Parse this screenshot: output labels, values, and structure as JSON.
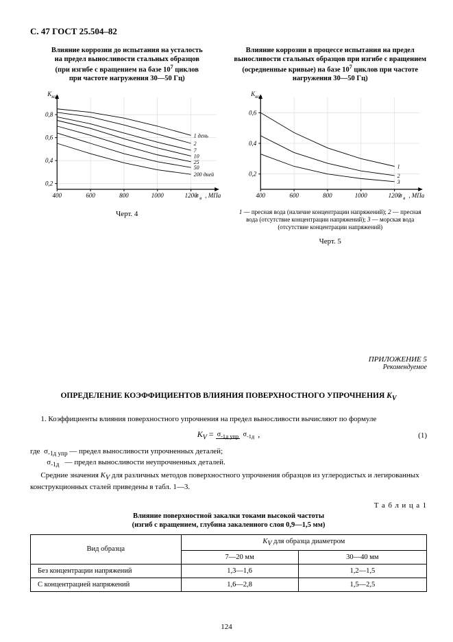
{
  "header": "С. 47  ГОСТ 25.504–82",
  "chart4": {
    "title_lines": [
      "Влияние коррозии до испытания на усталость",
      "на предел выносливости стальных образцов",
      "(при изгибе с вращением на базе 10^7 циклов",
      "при частоте нагружения 30—50 Гц)"
    ],
    "y_label": "K_кор",
    "y_ticks": [
      0.2,
      0.4,
      0.6,
      0.8
    ],
    "x_ticks": [
      400,
      600,
      800,
      1000,
      1200
    ],
    "x_tail": "σ_в , МПа",
    "curves": [
      {
        "label": "1 день",
        "y": [
          0.85,
          0.82,
          0.77,
          0.7,
          0.62
        ]
      },
      {
        "label": "2",
        "y": [
          0.82,
          0.78,
          0.71,
          0.63,
          0.55
        ]
      },
      {
        "label": "7",
        "y": [
          0.78,
          0.72,
          0.64,
          0.56,
          0.49
        ]
      },
      {
        "label": "10",
        "y": [
          0.75,
          0.68,
          0.59,
          0.51,
          0.44
        ]
      },
      {
        "label": "25",
        "y": [
          0.7,
          0.62,
          0.53,
          0.45,
          0.39
        ]
      },
      {
        "label": "50",
        "y": [
          0.64,
          0.55,
          0.46,
          0.39,
          0.34
        ]
      },
      {
        "label": "200 дней",
        "y": [
          0.55,
          0.46,
          0.38,
          0.32,
          0.28
        ]
      }
    ],
    "fig_label": "Черт. 4",
    "style": {
      "xlim": [
        400,
        1350
      ],
      "ylim": [
        0.15,
        0.95
      ],
      "grid_color": "#d0d0d0",
      "line_color": "#000000",
      "axis_fontsize": 9,
      "label_fontsize": 8,
      "line_width": 0.9
    }
  },
  "chart5": {
    "title_lines": [
      "Влияние коррозии в процессе испытания на предел",
      "выносливости стальных образцов при изгибе с вращением",
      "(осредненные кривые) на базе 10^7 циклов при частоте",
      "нагружения 30—50 Гц"
    ],
    "y_label": "K_кор",
    "y_ticks": [
      0.2,
      0.4,
      0.6
    ],
    "x_ticks": [
      400,
      600,
      800,
      1000,
      1200
    ],
    "x_tail": "σ_в , МПа",
    "curves": [
      {
        "label": "1",
        "y": [
          0.6,
          0.47,
          0.37,
          0.3,
          0.25
        ]
      },
      {
        "label": "2",
        "y": [
          0.45,
          0.34,
          0.27,
          0.22,
          0.19
        ]
      },
      {
        "label": "3",
        "y": [
          0.33,
          0.25,
          0.2,
          0.17,
          0.15
        ]
      }
    ],
    "legend": "1 — пресная вода (наличие концентрации напряжений); 2 — пресная вода (отсутствие концентрации напряжений); 3 — морская вода (отсутствие концентрации напряжений)",
    "fig_label": "Черт. 5",
    "style": {
      "xlim": [
        400,
        1350
      ],
      "ylim": [
        0.1,
        0.7
      ],
      "grid_color": "#d0d0d0",
      "line_color": "#000000",
      "axis_fontsize": 9,
      "label_fontsize": 8,
      "line_width": 0.9
    }
  },
  "appendix": {
    "title": "ПРИЛОЖЕНИЕ 5",
    "subtitle": "Рекомендуемое"
  },
  "section": {
    "title_pre": "ОПРЕДЕЛЕНИЕ КОЭФФИЦИЕНТОВ ВЛИЯНИЯ ПОВЕРХНОСТНОГО УПРОЧНЕНИЯ ",
    "title_kv": "K_V"
  },
  "para1": "1.  Коэффициенты влияния поверхностного упрочнения на предел выносливости вычисляют по формуле",
  "formula": {
    "lhs": "K_V =",
    "num": "σ_-1д упр",
    "den": "σ_-1д",
    "eq_num": "(1)"
  },
  "where1_lead": "где  ",
  "where1_sym": "σ_-1д упр",
  "where1_text": " — предел выносливости упрочненных деталей;",
  "where2_sym": "σ_-1д",
  "where2_text": " — предел выносливости неупрочненных деталей.",
  "para2": "Средние значения K_V для различных методов поверхностного упрочнения образцов из углеродистых и легированных конструкционных сталей приведены в табл. 1—3.",
  "table": {
    "label": "Т а б л и ц а 1",
    "caption_line1": "Влияние поверхностной закалки токами высокой частоты",
    "caption_line2": "(изгиб с вращением, глубина закаленного слоя 0,9—1,5 мм)",
    "header_span": "K_V для образца диаметром",
    "col0": "Вид образца",
    "col1": "7—20 мм",
    "col2": "30—40 мм",
    "rows": [
      {
        "c0": "Без концентрации напряжений",
        "c1": "1,3—1,6",
        "c2": "1,2—1,5"
      },
      {
        "c0": "С концентрацией напряжений",
        "c1": "1,6—2,8",
        "c2": "1,5—2,5"
      }
    ]
  },
  "page_number": "124"
}
